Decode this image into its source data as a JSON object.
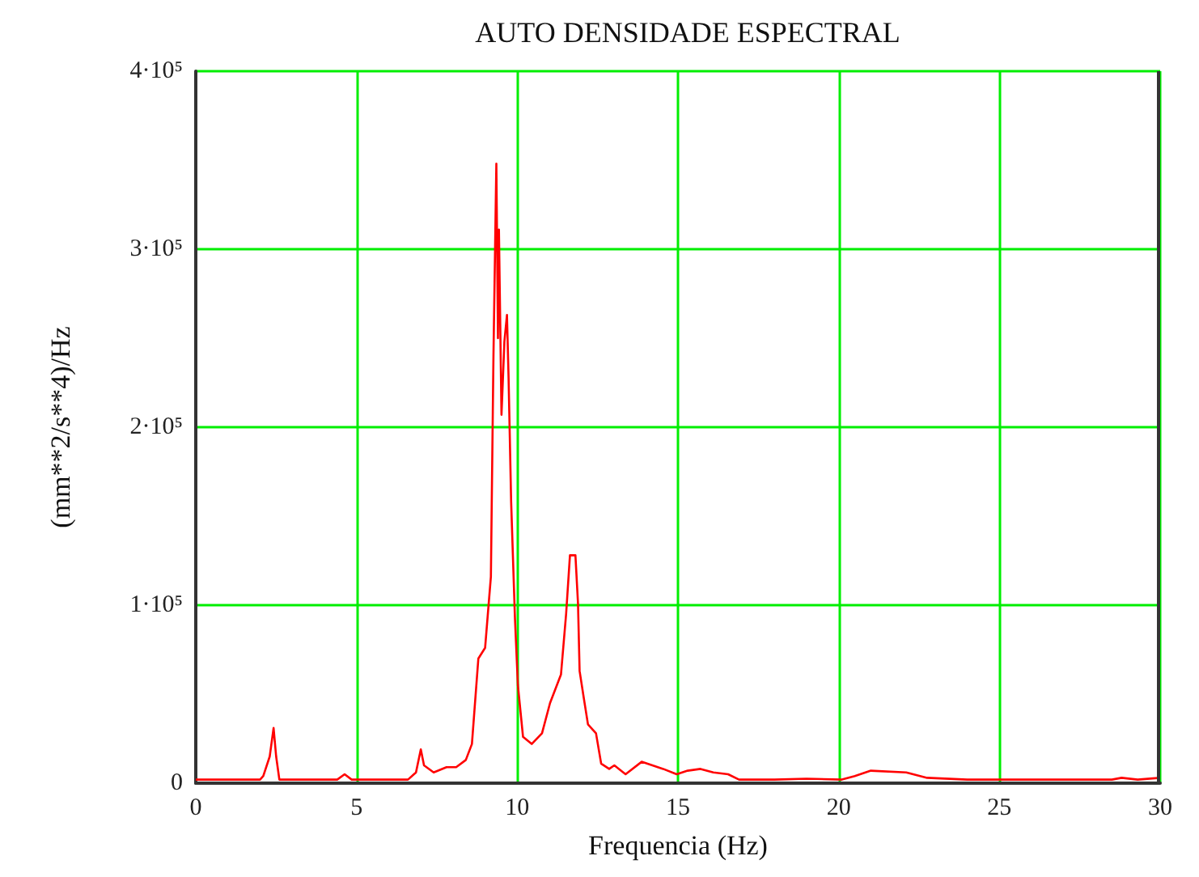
{
  "chart_data": {
    "type": "line",
    "title": "AUTO DENSIDADE ESPECTRAL",
    "xlabel": "Frequencia (Hz)",
    "ylabel": "(mm**2/s**4)/Hz",
    "x": [
      0,
      1,
      2.0,
      2.1,
      2.3,
      2.42,
      2.5,
      2.6,
      3.5,
      4.4,
      4.63,
      4.85,
      6.0,
      6.6,
      6.85,
      7.0,
      7.1,
      7.4,
      7.8,
      8.1,
      8.4,
      8.59,
      8.79,
      9.0,
      9.18,
      9.26,
      9.35,
      9.4,
      9.43,
      9.51,
      9.6,
      9.68,
      9.73,
      9.81,
      9.93,
      10.02,
      10.18,
      10.45,
      10.77,
      11.02,
      11.36,
      11.52,
      11.64,
      11.81,
      11.89,
      11.94,
      12.06,
      12.2,
      12.45,
      12.61,
      12.86,
      13.02,
      13.37,
      13.87,
      14.54,
      14.96,
      15.3,
      15.7,
      16.1,
      16.56,
      16.9,
      18,
      19,
      20.1,
      20.5,
      21.0,
      22.1,
      22.75,
      24,
      25.2,
      27,
      28.5,
      28.8,
      29.3,
      30
    ],
    "values": [
      2000,
      2000,
      2000,
      4000,
      15000,
      31000,
      15000,
      2000,
      2000,
      2000,
      5000,
      2000,
      2000,
      2000,
      6000,
      19000,
      10000,
      6000,
      9000,
      9000,
      13000,
      22000,
      70000,
      76000,
      116000,
      240000,
      348000,
      250000,
      311000,
      207000,
      248000,
      263000,
      228000,
      158000,
      92000,
      55000,
      26000,
      22000,
      28000,
      45000,
      61000,
      95000,
      128000,
      128000,
      101000,
      63000,
      49000,
      33000,
      28000,
      11000,
      8000,
      10000,
      5000,
      12000,
      8000,
      5000,
      7000,
      8000,
      6000,
      5000,
      2000,
      2000,
      2500,
      2000,
      4000,
      7000,
      6000,
      3000,
      2000,
      2000,
      2000,
      2000,
      3000,
      2000,
      3000
    ],
    "color": "#ff0000",
    "xlim": [
      0,
      30
    ],
    "xticks": [
      0,
      5,
      10,
      15,
      20,
      25,
      30
    ],
    "ylim": [
      0,
      400000
    ],
    "yticks": [
      {
        "value": 0,
        "label": "0"
      },
      {
        "value": 100000,
        "label": "1·10⁵"
      },
      {
        "value": 200000,
        "label": "2·10⁵"
      },
      {
        "value": 300000,
        "label": "3·10⁵"
      },
      {
        "value": 400000,
        "label": "4·10⁵"
      }
    ],
    "grid": true,
    "marker": "none",
    "line_style": "solid"
  }
}
